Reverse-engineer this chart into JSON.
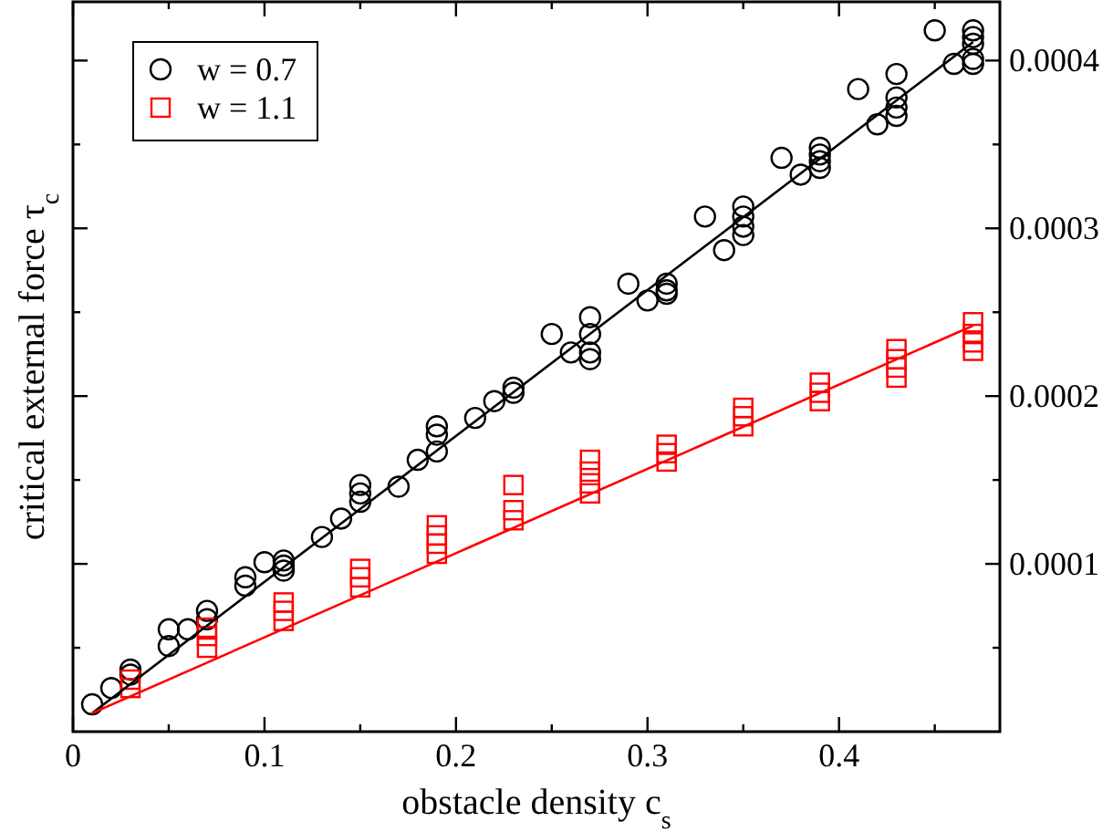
{
  "chart_data": {
    "type": "scatter",
    "xlabel": "obstacle density c$_{s}$",
    "ylabel": "critical external force τ$_{c}$",
    "xlim": [
      0,
      0.484
    ],
    "ylim": [
      0,
      0.000435
    ],
    "xticks": [
      0,
      {
        "value": 0.05,
        "label": null
      },
      0.1,
      {
        "value": 0.15,
        "label": null
      },
      0.2,
      {
        "value": 0.25,
        "label": null
      },
      0.3,
      {
        "value": 0.35,
        "label": null
      },
      0.4,
      {
        "value": 0.45,
        "label": null
      }
    ],
    "yticks": [
      {
        "value": 5e-05,
        "label": null
      },
      0.0001,
      {
        "value": 0.00015,
        "label": null
      },
      0.0002,
      {
        "value": 0.00025,
        "label": null
      },
      0.0003,
      {
        "value": 0.00035,
        "label": null
      },
      0.0004
    ],
    "grid": false,
    "legend": "top left",
    "series": [
      {
        "name": "w = 0.7",
        "color": "#000000",
        "marker": "circle",
        "x": [
          0.01,
          0.02,
          0.03,
          0.03,
          0.05,
          0.05,
          0.06,
          0.07,
          0.07,
          0.09,
          0.09,
          0.1,
          0.11,
          0.11,
          0.11,
          0.13,
          0.14,
          0.15,
          0.15,
          0.15,
          0.17,
          0.18,
          0.19,
          0.19,
          0.19,
          0.21,
          0.22,
          0.23,
          0.23,
          0.25,
          0.26,
          0.27,
          0.27,
          0.27,
          0.27,
          0.29,
          0.3,
          0.31,
          0.31,
          0.31,
          0.33,
          0.34,
          0.35,
          0.35,
          0.35,
          0.35,
          0.37,
          0.38,
          0.39,
          0.39,
          0.39,
          0.39,
          0.41,
          0.42,
          0.43,
          0.43,
          0.43,
          0.43,
          0.45,
          0.46,
          0.47,
          0.47,
          0.47,
          0.47,
          0.47
        ],
        "values": [
          1.63e-05,
          2.6e-05,
          3.7e-05,
          3.4e-05,
          6.1e-05,
          5.1e-05,
          6.1e-05,
          7.2e-05,
          6.7e-05,
          9.2e-05,
          8.7e-05,
          0.000101,
          0.000102,
          9.9e-05,
          9.6e-05,
          0.000116,
          0.000127,
          0.000147,
          0.000142,
          0.000137,
          0.000146,
          0.000162,
          0.000182,
          0.000177,
          0.000167,
          0.000187,
          0.000197,
          0.000205,
          0.000202,
          0.000237,
          0.000226,
          0.000247,
          0.000237,
          0.000226,
          0.000222,
          0.000267,
          0.000257,
          0.000267,
          0.000263,
          0.000261,
          0.000307,
          0.000287,
          0.000313,
          0.000307,
          0.000301,
          0.000296,
          0.000342,
          0.000332,
          0.000348,
          0.000344,
          0.00034,
          0.000336,
          0.000383,
          0.000362,
          0.000392,
          0.000378,
          0.000372,
          0.000367,
          0.000418,
          0.000398,
          0.000418,
          0.000414,
          0.00041,
          0.000401,
          0.000398
        ]
      },
      {
        "name": "w = 1.1",
        "color": "#ff0000",
        "marker": "square",
        "x": [
          0.03,
          0.03,
          0.07,
          0.07,
          0.07,
          0.11,
          0.11,
          0.11,
          0.15,
          0.15,
          0.15,
          0.19,
          0.19,
          0.19,
          0.19,
          0.23,
          0.23,
          0.23,
          0.27,
          0.27,
          0.27,
          0.27,
          0.31,
          0.31,
          0.31,
          0.35,
          0.35,
          0.35,
          0.39,
          0.39,
          0.39,
          0.43,
          0.43,
          0.43,
          0.43,
          0.47,
          0.47,
          0.47,
          0.47
        ],
        "values": [
          3.1e-05,
          2.6e-05,
          6.2e-05,
          5.7e-05,
          5e-05,
          7.7e-05,
          7.2e-05,
          6.6e-05,
          9.7e-05,
          9.2e-05,
          8.6e-05,
          0.000123,
          0.000117,
          0.000112,
          0.000106,
          0.000147,
          0.000132,
          0.000126,
          0.000162,
          0.000155,
          0.000148,
          0.000142,
          0.000171,
          0.000166,
          0.000161,
          0.000193,
          0.000188,
          0.000182,
          0.000208,
          0.000202,
          0.000197,
          0.000228,
          0.000222,
          0.000217,
          0.000211,
          0.000244,
          0.000237,
          0.000232,
          0.000227
        ]
      },
      {
        "type": "line",
        "color": "#000000",
        "x": [
          0.01,
          0.47
        ],
        "values": [
          1.1e-05,
          0.000411
        ]
      },
      {
        "type": "line",
        "color": "#ff0000",
        "x": [
          0.01,
          0.47
        ],
        "values": [
          1.1e-05,
          0.000242
        ]
      }
    ]
  }
}
